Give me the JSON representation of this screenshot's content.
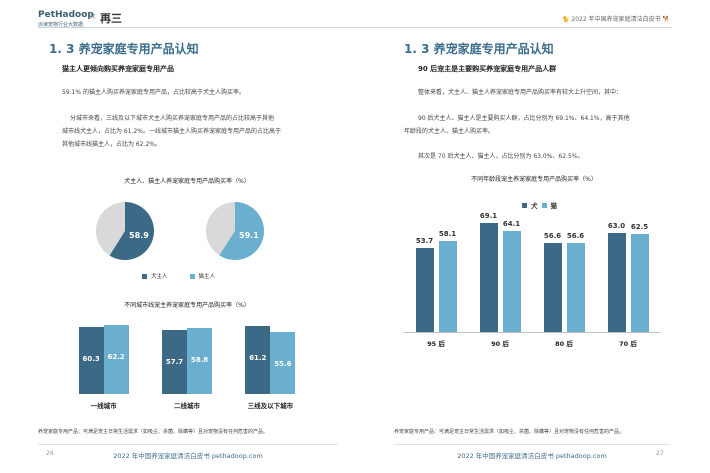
{
  "header": {
    "logo_text": "PetHadoop",
    "logo_sub": "派读宠物行业大数据",
    "logo_x": "×",
    "logo2": "再三",
    "report_title": "2022 年中国养宠家庭清洁白皮书"
  },
  "left": {
    "section_title": "1. 3 养宠家庭专用产品认知",
    "subtitle": "猫主人更倾向购买养宠家庭专用产品",
    "para1": "59.1% 的猫主人购买养宠家庭专用产品，占比较高于犬主人购买率。",
    "para2_line1": "分城市来看，三线及以下城市犬主人购买养宠家庭专用产品的占比较高于其他",
    "para2_line2": "城市线犬主人，占比为 61.2%。一线城市猫主人购买养宠家庭专用产品的占比高于",
    "para2_line3": "其他城市线猫主人，占比为 62.2%。",
    "pie_title": "犬主人、猫主人养宠家庭专用产品购买率（%）",
    "pie_legend": [
      "犬主人",
      "猫主人"
    ],
    "bar_title": "不同城市线宠主养宠家庭专用产品购买率（%）",
    "note": "养宠家庭专用产品：可满足宠主日常生活需求（如吸尘、杀菌、除螨等）且对宠物没有任何危害的产品。",
    "page_number": "26",
    "footer": "2022 年中国养宠家庭清洁白皮书 pethadoop.com"
  },
  "right": {
    "section_title": "1. 3 养宠家庭专用产品认知",
    "subtitle": "90 后宠主是主要购买养宠家庭专用产品人群",
    "para1": "整体来看，犬主人、猫主人养宠家庭专用产品购买率有较大上升空间，其中：",
    "para2_line1": "90 后犬主人、猫主人是主要购买人群，占比分别为 69.1%、64.1%，高于其他",
    "para2_line2": "年龄段的犬主人、猫主人购买率。",
    "para3": "其次是 70 后犬主人、猫主人，占比分别为 63.0%、62.5%。",
    "chart_title": "不同年龄段宠主养宠家庭专用产品购买率（%）",
    "legend": [
      "犬",
      "猫"
    ],
    "note": "养宠家庭专用产品：可满足宠主日常生活需求（如吸尘、杀菌、除螨等）且对宠物没有任何危害的产品。",
    "page_number": "27",
    "footer": "2022 年中国养宠家庭清洁白皮书 pethadoop.com"
  },
  "colors": {
    "dog": "#3c6a86",
    "cat": "#6aaed0",
    "rest": "#d9d9d9"
  },
  "chart_data": [
    {
      "type": "pie",
      "title": "犬主人、猫主人养宠家庭专用产品购买率（%）",
      "series": [
        {
          "name": "犬主人",
          "value": 58.9
        },
        {
          "name": "猫主人",
          "value": 59.1
        }
      ],
      "labels": [
        "58.9",
        "59.1"
      ],
      "legend": "bottom"
    },
    {
      "type": "bar",
      "title": "不同城市线宠主养宠家庭专用产品购买率（%）",
      "categories": [
        "一线城市",
        "二线城市",
        "三线及以下城市"
      ],
      "series": [
        {
          "name": "犬主人",
          "values": [
            60.3,
            57.7,
            61.2
          ]
        },
        {
          "name": "猫主人",
          "values": [
            62.2,
            58.8,
            55.6
          ]
        }
      ],
      "labels": [
        [
          "60.3",
          "57.7",
          "61.2"
        ],
        [
          "62.2",
          "58.8",
          "55.6"
        ]
      ],
      "ylim": [
        0,
        70
      ]
    },
    {
      "type": "bar",
      "title": "不同年龄段宠主养宠家庭专用产品购买率（%）",
      "categories": [
        "95 后",
        "90 后",
        "80 后",
        "70 后"
      ],
      "series": [
        {
          "name": "犬",
          "values": [
            53.7,
            69.1,
            56.6,
            63.0
          ]
        },
        {
          "name": "猫",
          "values": [
            58.1,
            64.1,
            56.6,
            62.5
          ]
        }
      ],
      "labels": [
        [
          "53.7",
          "69.1",
          "56.6",
          "63.0"
        ],
        [
          "58.1",
          "64.1",
          "56.6",
          "62.5"
        ]
      ],
      "legend": "top",
      "ylim": [
        0,
        75
      ]
    }
  ]
}
